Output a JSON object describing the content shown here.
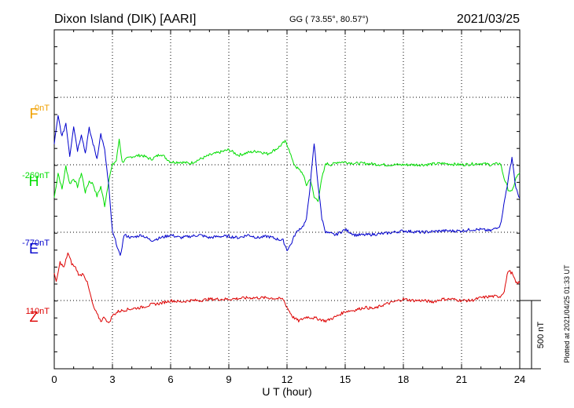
{
  "header": {
    "station": "Dixon Island (DIK)  [AARI]",
    "coords": "GG ( 73.55°,  80.57°)",
    "date": "2021/03/25"
  },
  "footer": {
    "plotted": "Plotted at 2021/04/25 01:33 UT"
  },
  "colors": {
    "F": "#f0a000",
    "H": "#00dd00",
    "E": "#0000cc",
    "Z": "#dd0000"
  },
  "chart_data": {
    "type": "line",
    "xlabel": "U T (hour)",
    "xlim": [
      0,
      24
    ],
    "xticks": [
      "0",
      "3",
      "6",
      "9",
      "12",
      "15",
      "18",
      "21",
      "24"
    ],
    "scale_label": "500 nT",
    "series": [
      {
        "name": "F",
        "baseline": "0nT",
        "color": "#f0a000",
        "x": [],
        "y": []
      },
      {
        "name": "H",
        "baseline": "-260nT",
        "color": "#00dd00",
        "x": [
          0,
          0.2,
          0.4,
          0.6,
          0.8,
          1.0,
          1.2,
          1.4,
          1.6,
          1.8,
          2.0,
          2.2,
          2.4,
          2.6,
          2.8,
          3.0,
          3.2,
          3.35,
          3.5,
          3.7,
          4.0,
          4.5,
          5.0,
          5.5,
          6.0,
          6.5,
          7.0,
          7.5,
          8.0,
          8.5,
          9.0,
          9.5,
          10.0,
          10.5,
          11.0,
          11.5,
          11.9,
          12.1,
          12.3,
          12.5,
          12.8,
          13.0,
          13.2,
          13.4,
          13.6,
          13.8,
          14.0,
          14.3,
          14.6,
          15.0,
          15.5,
          16.0,
          17.0,
          18.0,
          19.0,
          20.0,
          21.0,
          22.0,
          22.5,
          23.0,
          23.2,
          23.4,
          23.6,
          23.8,
          24.0
        ],
        "y": [
          -240,
          -60,
          -180,
          -10,
          -140,
          -100,
          -160,
          -60,
          -200,
          -120,
          -140,
          -230,
          -160,
          -300,
          -120,
          0,
          30,
          190,
          20,
          40,
          60,
          70,
          40,
          80,
          20,
          20,
          10,
          40,
          70,
          90,
          110,
          70,
          90,
          100,
          80,
          120,
          170,
          120,
          20,
          -20,
          -60,
          -150,
          -100,
          -240,
          -260,
          -100,
          10,
          0,
          20,
          20,
          10,
          10,
          0,
          0,
          0,
          10,
          0,
          10,
          0,
          10,
          -100,
          -180,
          -200,
          -100,
          -60
        ]
      },
      {
        "name": "E",
        "baseline": "-770nT",
        "color": "#0000cc",
        "x": [
          0,
          0.2,
          0.4,
          0.6,
          0.8,
          1.0,
          1.2,
          1.4,
          1.6,
          1.8,
          2.0,
          2.2,
          2.4,
          2.6,
          2.8,
          3.0,
          3.2,
          3.4,
          3.6,
          4.0,
          4.5,
          5.0,
          5.5,
          6.0,
          6.5,
          7.0,
          7.5,
          8.0,
          8.5,
          9.0,
          9.5,
          10.0,
          10.5,
          11.0,
          11.5,
          11.8,
          12.0,
          12.2,
          12.4,
          12.6,
          12.8,
          13.0,
          13.2,
          13.4,
          13.6,
          13.8,
          14.0,
          14.5,
          15.0,
          15.5,
          16.0,
          17.0,
          18.0,
          19.0,
          20.0,
          21.0,
          21.5,
          22.0,
          22.5,
          23.0,
          23.3,
          23.6,
          23.8,
          24.0
        ],
        "y": [
          650,
          850,
          700,
          800,
          560,
          780,
          600,
          720,
          580,
          760,
          650,
          540,
          720,
          600,
          350,
          0,
          -80,
          -180,
          -20,
          -40,
          -20,
          -60,
          -40,
          -20,
          -40,
          -30,
          -20,
          -40,
          -30,
          -30,
          -40,
          -20,
          -40,
          -30,
          -50,
          -60,
          -130,
          -90,
          -20,
          20,
          40,
          90,
          350,
          650,
          350,
          100,
          0,
          -20,
          20,
          -20,
          -20,
          -10,
          10,
          0,
          10,
          10,
          20,
          20,
          10,
          50,
          300,
          550,
          320,
          250
        ]
      },
      {
        "name": "Z",
        "baseline": "110nT",
        "color": "#dd0000",
        "x": [
          0,
          0.1,
          0.3,
          0.5,
          0.7,
          0.9,
          1.1,
          1.3,
          1.5,
          1.7,
          1.9,
          2.0,
          2.2,
          2.4,
          2.6,
          2.8,
          3.0,
          3.3,
          3.6,
          4.0,
          4.5,
          5.0,
          5.5,
          6.0,
          6.5,
          7.0,
          7.5,
          8.0,
          9.0,
          10.0,
          11.0,
          11.8,
          12.0,
          12.3,
          12.6,
          13.0,
          13.5,
          14.0,
          14.5,
          15.0,
          15.5,
          16.0,
          16.5,
          17.0,
          17.5,
          18.0,
          18.5,
          19.0,
          19.5,
          20.0,
          20.5,
          21.0,
          21.5,
          22.0,
          22.5,
          23.0,
          23.2,
          23.4,
          23.6,
          23.8,
          24.0
        ],
        "y": [
          200,
          130,
          280,
          240,
          350,
          270,
          240,
          180,
          200,
          130,
          20,
          -40,
          -100,
          -150,
          -120,
          -170,
          -110,
          -80,
          -70,
          -60,
          -50,
          -30,
          -20,
          0,
          -10,
          0,
          0,
          10,
          10,
          20,
          20,
          10,
          -50,
          -120,
          -150,
          -120,
          -130,
          -150,
          -120,
          -80,
          -70,
          -50,
          -60,
          -30,
          -10,
          10,
          0,
          0,
          -10,
          10,
          10,
          0,
          0,
          20,
          30,
          30,
          70,
          220,
          200,
          130,
          130
        ]
      }
    ]
  }
}
